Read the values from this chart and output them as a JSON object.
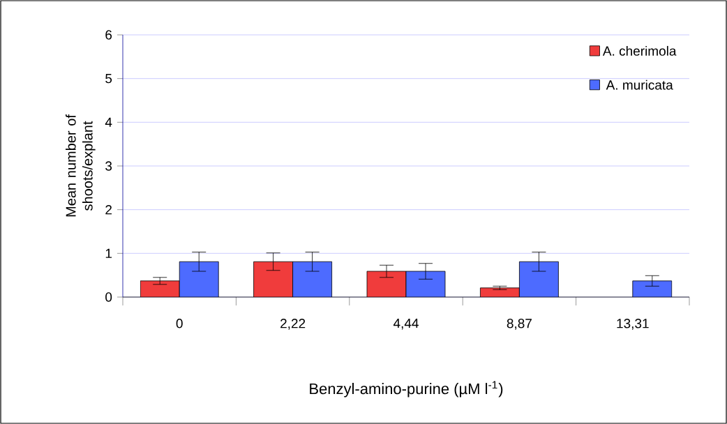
{
  "chart_data": {
    "type": "bar",
    "xlabel": "Benzyl-amino-purine  (µM l$^{-1}$)",
    "ylabel": "Mean number of shoots/explant",
    "categories": [
      "0",
      "2,22",
      "4,44",
      "8,87",
      "13,31"
    ],
    "series": [
      {
        "name": "A. cherimola",
        "color": "#f03c3c",
        "values": [
          0.37,
          0.81,
          0.59,
          0.21,
          null
        ],
        "errors": [
          0.08,
          0.2,
          0.14,
          0.04,
          null
        ]
      },
      {
        "name": "A. muricata",
        "color": "#4d6bff",
        "values": [
          0.81,
          0.81,
          0.59,
          0.81,
          0.37
        ],
        "errors": [
          0.22,
          0.22,
          0.18,
          0.22,
          0.12
        ]
      }
    ],
    "ylim": [
      0,
      6
    ],
    "yticks": [
      0,
      1,
      2,
      3,
      4,
      5,
      6
    ],
    "grid": "y",
    "legend": "top right"
  }
}
